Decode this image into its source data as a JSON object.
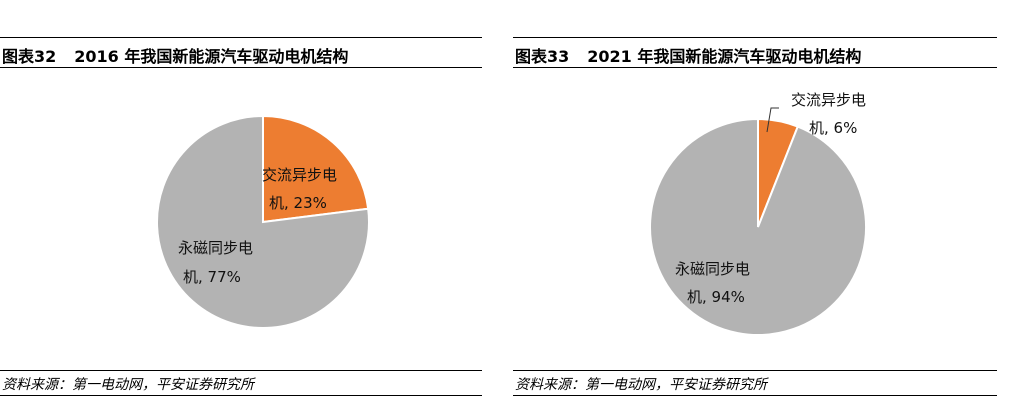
{
  "figures": [
    {
      "title_prefix": "图表32",
      "title_text": "2016 年我国新能源汽车驱动电机结构",
      "source": "资料来源：第一电动网，平安证券研究所"
    },
    {
      "title_prefix": "图表33",
      "title_text": "2021 年我国新能源汽车驱动电机结构",
      "source": "资料来源：第一电动网，平安证券研究所"
    }
  ],
  "colors": {
    "ac": "#ED7D31",
    "pm": "#B3B3B3"
  },
  "chart_data": [
    {
      "type": "pie",
      "title": "2016 年我国新能源汽车驱动电机结构",
      "slices": [
        {
          "label_line1": "交流异步电",
          "label_line2": "机, 23%",
          "value": 23
        },
        {
          "label_line1": "永磁同步电",
          "label_line2": "机, 77%",
          "value": 77
        }
      ]
    },
    {
      "type": "pie",
      "title": "2021 年我国新能源汽车驱动电机结构",
      "slices": [
        {
          "label_line1": "交流异步电",
          "label_line2": "机, 6%",
          "value": 6
        },
        {
          "label_line1": "永磁同步电",
          "label_line2": "机, 94%",
          "value": 94
        }
      ]
    }
  ]
}
